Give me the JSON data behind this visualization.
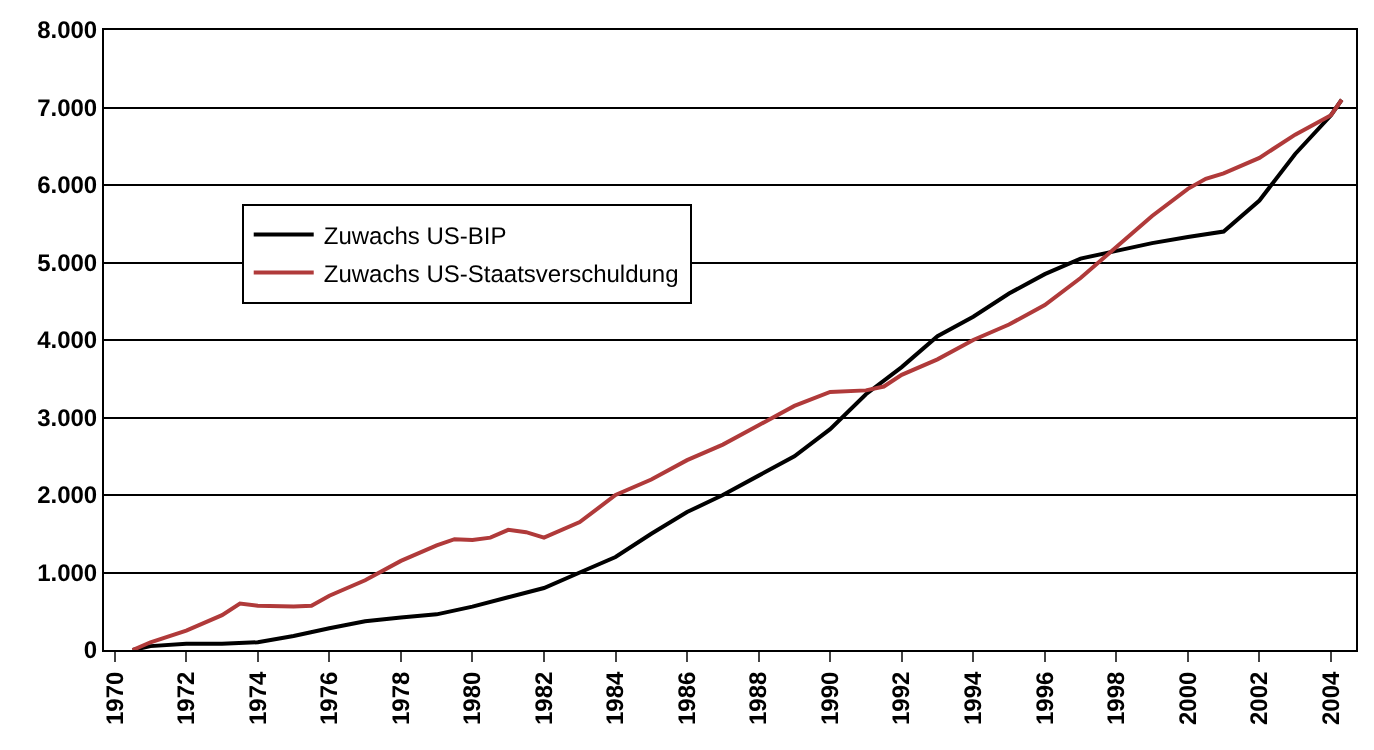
{
  "chart_data": {
    "type": "line",
    "series": [
      {
        "name": "Zuwachs US-BIP",
        "color": "#000000",
        "x": [
          1970.5,
          1971,
          1972,
          1973,
          1974,
          1975,
          1976,
          1977,
          1978,
          1979,
          1980,
          1981,
          1982,
          1983,
          1984,
          1985,
          1986,
          1987,
          1988,
          1989,
          1990,
          1991,
          1992,
          1993,
          1994,
          1995,
          1996,
          1997,
          1998,
          1999,
          2000,
          2001,
          2002,
          2003,
          2004,
          2004.3
        ],
        "values": [
          0,
          50,
          80,
          80,
          100,
          180,
          280,
          370,
          420,
          460,
          560,
          680,
          800,
          1000,
          1200,
          1500,
          1780,
          2000,
          2250,
          2500,
          2850,
          3300,
          3650,
          4050,
          4300,
          4600,
          4850,
          5050,
          5150,
          5250,
          5330,
          5400,
          5800,
          6400,
          6900,
          7100
        ]
      },
      {
        "name": "Zuwachs US-Staatsverschuldung",
        "color": "#b03a3a",
        "x": [
          1970.5,
          1971,
          1972,
          1973,
          1973.5,
          1974,
          1975,
          1975.5,
          1976,
          1977,
          1978,
          1979,
          1979.5,
          1980,
          1980.5,
          1981,
          1981.5,
          1982,
          1983,
          1984,
          1985,
          1986,
          1987,
          1988,
          1989,
          1990,
          1991,
          1991.5,
          1992,
          1993,
          1994,
          1995,
          1996,
          1997,
          1998,
          1999,
          2000,
          2000.5,
          2001,
          2002,
          2003,
          2004,
          2004.3
        ],
        "values": [
          0,
          100,
          250,
          450,
          600,
          570,
          560,
          570,
          700,
          900,
          1150,
          1350,
          1430,
          1420,
          1450,
          1550,
          1520,
          1450,
          1650,
          2000,
          2200,
          2450,
          2650,
          2900,
          3150,
          3330,
          3350,
          3400,
          3550,
          3750,
          4000,
          4200,
          4450,
          4800,
          5200,
          5600,
          5950,
          6080,
          6150,
          6350,
          6650,
          6900,
          7100
        ]
      }
    ],
    "xlim": [
      1969.7,
      2004.7
    ],
    "xticks": [
      1970,
      1972,
      1974,
      1976,
      1978,
      1980,
      1982,
      1984,
      1986,
      1988,
      1990,
      1992,
      1994,
      1996,
      1998,
      2000,
      2002,
      2004
    ],
    "ylim": [
      0,
      8000
    ],
    "yticks": [
      {
        "value": 0,
        "label": "0"
      },
      {
        "value": 1000,
        "label": "1.000"
      },
      {
        "value": 2000,
        "label": "2.000"
      },
      {
        "value": 3000,
        "label": "3.000"
      },
      {
        "value": 4000,
        "label": "4.000"
      },
      {
        "value": 5000,
        "label": "5.000"
      },
      {
        "value": 6000,
        "label": "6.000"
      },
      {
        "value": 7000,
        "label": "7.000"
      },
      {
        "value": 8000,
        "label": "8.000"
      }
    ],
    "grid": "y",
    "legend": "left",
    "line_style": "solid",
    "marker": "none"
  }
}
